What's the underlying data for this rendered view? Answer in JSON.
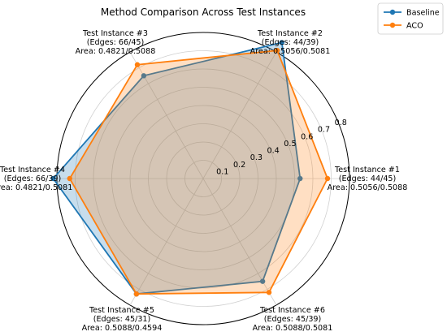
{
  "chart_data": {
    "type": "radar",
    "title": "Method Comparison Across Test Instances",
    "rlim": [
      0,
      0.8
    ],
    "r_ticks": [
      "0.1",
      "0.2",
      "0.3",
      "0.4",
      "0.5",
      "0.6",
      "0.7",
      "0.8"
    ],
    "grid": true,
    "legend_position": "top-right",
    "categories": [
      [
        "Test Instance #1",
        "(Edges: 44/45)",
        "Area: 0.5056/0.5088"
      ],
      [
        "Test Instance #2",
        "(Edges: 44/39)",
        "Area: 0.5056/0.5081"
      ],
      [
        "Test Instance #3",
        "(Edges: 66/45)",
        "Area: 0.4821/0.5088"
      ],
      [
        "Test Instance #4",
        "(Edges: 66/39)",
        "Area: 0.4821/0.5081"
      ],
      [
        "Test Instance #5",
        "(Edges: 45/31)",
        "Area: 0.5088/0.4594"
      ],
      [
        "Test Instance #6",
        "(Edges: 45/39)",
        "Area: 0.5088/0.5081"
      ]
    ],
    "series": [
      {
        "name": "Baseline",
        "color": "#1f77b4",
        "values": [
          0.53,
          0.86,
          0.65,
          0.82,
          0.73,
          0.65
        ]
      },
      {
        "name": "ACO",
        "color": "#ff7f0e",
        "values": [
          0.68,
          0.81,
          0.72,
          0.73,
          0.73,
          0.72
        ]
      }
    ]
  }
}
